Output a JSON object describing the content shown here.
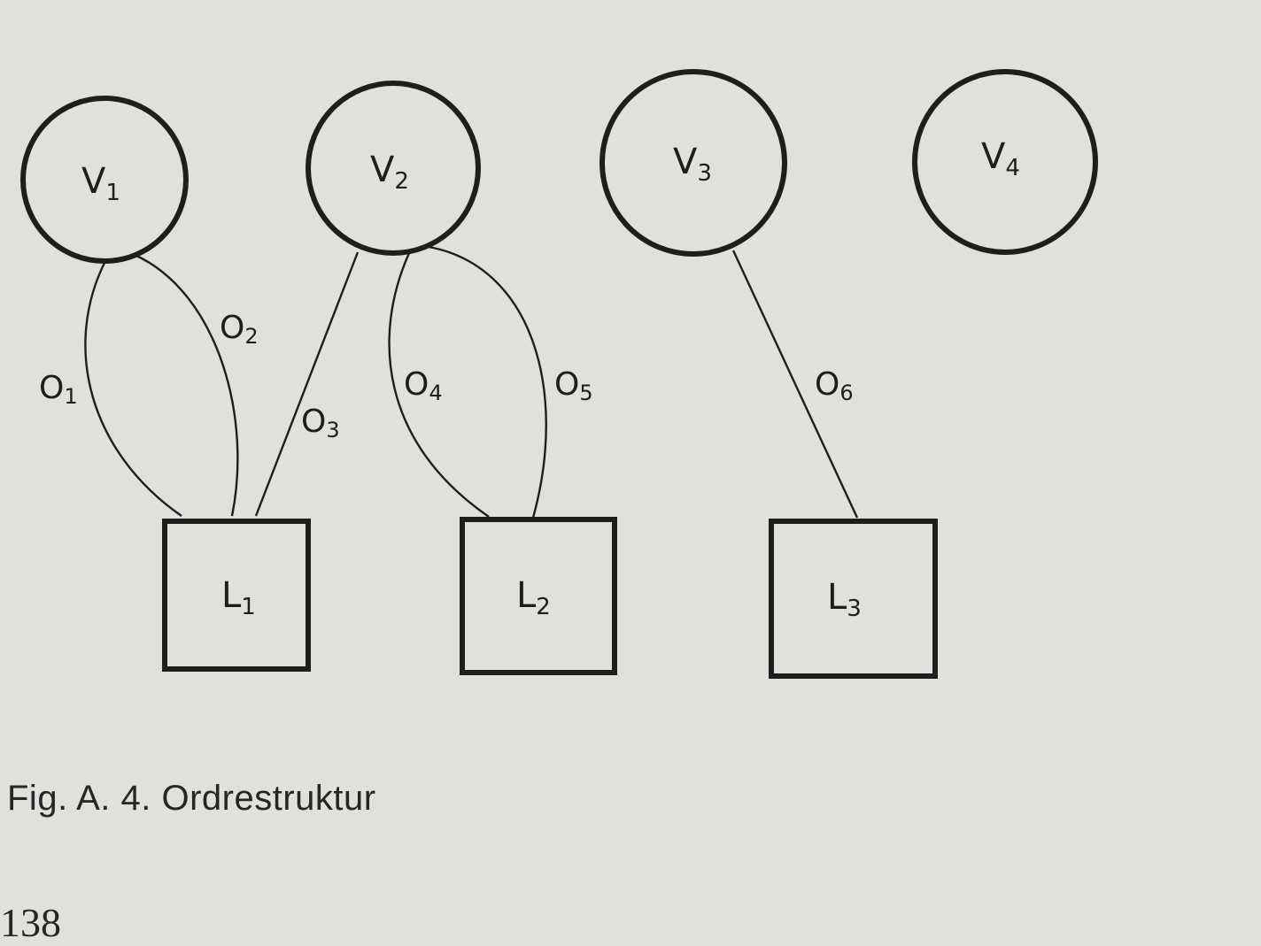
{
  "diagram": {
    "nodes": {
      "V1": {
        "base": "V",
        "sub": "1",
        "shape": "circle"
      },
      "V2": {
        "base": "V",
        "sub": "2",
        "shape": "circle"
      },
      "V3": {
        "base": "V",
        "sub": "3",
        "shape": "circle"
      },
      "V4": {
        "base": "V",
        "sub": "4",
        "shape": "circle"
      },
      "L1": {
        "base": "L",
        "sub": "1",
        "shape": "square"
      },
      "L2": {
        "base": "L",
        "sub": "2",
        "shape": "square"
      },
      "L3": {
        "base": "L",
        "sub": "3",
        "shape": "square"
      }
    },
    "edges": {
      "O1": {
        "base": "O",
        "sub": "1",
        "from": "V1",
        "to": "L1"
      },
      "O2": {
        "base": "O",
        "sub": "2",
        "from": "V1",
        "to": "L1"
      },
      "O3": {
        "base": "O",
        "sub": "3",
        "from": "V2",
        "to": "L1"
      },
      "O4": {
        "base": "O",
        "sub": "4",
        "from": "V2",
        "to": "L2"
      },
      "O5": {
        "base": "O",
        "sub": "5",
        "from": "V2",
        "to": "L2"
      },
      "O6": {
        "base": "O",
        "sub": "6",
        "from": "V3",
        "to": "L3"
      }
    }
  },
  "caption": "Fig. A. 4. Ordrestruktur",
  "page_number": "138",
  "colors": {
    "paper": "#e1e0dd",
    "ink": "#1e1e1e"
  }
}
